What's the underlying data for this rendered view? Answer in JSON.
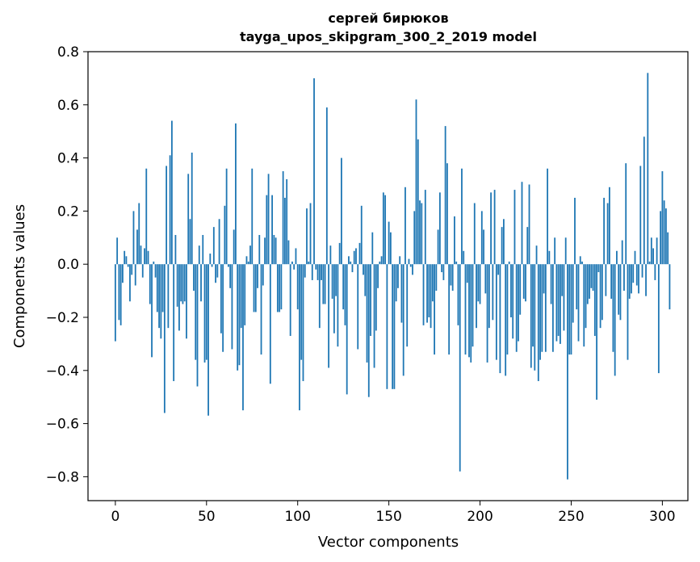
{
  "chart_data": {
    "type": "bar",
    "title": "сергей бирюков",
    "subtitle": "tayga_upos_skipgram_300_2_2019 model",
    "xlabel": "Vector components",
    "ylabel": "Components values",
    "xlim": [
      -15,
      314
    ],
    "ylim": [
      -0.89,
      0.8
    ],
    "xticks": [
      0,
      50,
      100,
      150,
      200,
      250,
      300
    ],
    "xtick_labels": [
      "0",
      "50",
      "100",
      "150",
      "200",
      "250",
      "300"
    ],
    "yticks": [
      -0.8,
      -0.6,
      -0.4,
      -0.2,
      0.0,
      0.2,
      0.4,
      0.6,
      0.8
    ],
    "ytick_labels": [
      "−0.8",
      "−0.6",
      "−0.4",
      "−0.2",
      "0.0",
      "0.2",
      "0.4",
      "0.6",
      "0.8"
    ],
    "bar_color": "#1f77b4",
    "grid": false,
    "legend": "none",
    "values": [
      -0.29,
      0.1,
      -0.21,
      -0.23,
      -0.07,
      0.05,
      0.03,
      -0.01,
      -0.14,
      -0.04,
      0.2,
      -0.08,
      0.13,
      0.23,
      0.07,
      -0.05,
      0.06,
      0.36,
      0.05,
      -0.15,
      -0.35,
      0.01,
      -0.05,
      -0.18,
      -0.24,
      -0.28,
      -0.18,
      -0.56,
      0.37,
      -0.24,
      0.41,
      0.54,
      -0.44,
      0.11,
      -0.16,
      -0.25,
      -0.14,
      -0.15,
      -0.14,
      -0.28,
      0.34,
      0.17,
      0.42,
      -0.1,
      -0.36,
      -0.46,
      0.07,
      -0.14,
      0.11,
      -0.37,
      -0.36,
      -0.57,
      0.04,
      -0.01,
      0.14,
      -0.07,
      -0.05,
      0.17,
      -0.26,
      -0.33,
      0.22,
      0.36,
      -0.01,
      -0.09,
      -0.32,
      0.13,
      0.53,
      -0.4,
      -0.38,
      -0.24,
      -0.55,
      -0.23,
      0.03,
      0.01,
      0.07,
      0.36,
      -0.18,
      -0.18,
      -0.09,
      0.11,
      -0.34,
      -0.08,
      0.1,
      0.26,
      0.34,
      -0.45,
      0.26,
      0.11,
      0.1,
      -0.18,
      -0.18,
      -0.17,
      0.35,
      0.25,
      0.32,
      0.09,
      -0.27,
      0.01,
      -0.02,
      0.06,
      -0.17,
      -0.55,
      -0.36,
      -0.44,
      -0.05,
      0.21,
      0.01,
      0.23,
      -0.06,
      0.7,
      -0.02,
      -0.06,
      -0.24,
      -0.06,
      -0.15,
      -0.15,
      0.59,
      -0.39,
      0.07,
      -0.13,
      -0.26,
      -0.12,
      -0.31,
      0.08,
      0.4,
      -0.17,
      -0.23,
      -0.49,
      0.03,
      0.01,
      -0.03,
      0.05,
      0.06,
      -0.32,
      0.08,
      0.22,
      -0.04,
      -0.12,
      -0.37,
      -0.5,
      -0.27,
      0.12,
      -0.39,
      -0.25,
      -0.09,
      0.01,
      0.03,
      0.27,
      0.26,
      -0.47,
      0.16,
      0.12,
      -0.47,
      -0.47,
      -0.14,
      -0.09,
      0.03,
      -0.22,
      -0.42,
      0.29,
      -0.31,
      0.02,
      -0.01,
      -0.04,
      0.2,
      0.62,
      0.47,
      0.24,
      0.23,
      -0.23,
      0.28,
      -0.22,
      -0.2,
      -0.24,
      -0.14,
      -0.34,
      -0.1,
      0.13,
      0.27,
      -0.03,
      -0.06,
      0.52,
      0.38,
      -0.34,
      -0.08,
      -0.1,
      0.18,
      0.01,
      -0.23,
      -0.78,
      0.36,
      0.05,
      -0.34,
      -0.07,
      -0.35,
      -0.37,
      -0.31,
      0.23,
      -0.24,
      -0.14,
      -0.15,
      0.2,
      0.13,
      -0.11,
      -0.37,
      -0.24,
      0.27,
      -0.21,
      0.28,
      -0.36,
      -0.04,
      -0.41,
      0.14,
      0.17,
      -0.42,
      -0.34,
      0.01,
      -0.2,
      -0.28,
      0.28,
      -0.33,
      -0.29,
      -0.19,
      0.31,
      -0.13,
      -0.14,
      0.14,
      0.3,
      -0.39,
      -0.31,
      -0.4,
      0.07,
      -0.44,
      -0.36,
      -0.33,
      -0.11,
      -0.33,
      0.36,
      0.05,
      -0.15,
      -0.33,
      0.1,
      -0.29,
      -0.27,
      -0.3,
      -0.12,
      -0.25,
      0.1,
      -0.81,
      -0.34,
      -0.34,
      -0.22,
      0.25,
      -0.17,
      -0.29,
      0.03,
      0.01,
      -0.31,
      -0.24,
      -0.15,
      -0.13,
      -0.09,
      -0.1,
      -0.27,
      -0.51,
      -0.03,
      -0.24,
      -0.21,
      0.25,
      -0.12,
      0.23,
      0.29,
      -0.13,
      -0.33,
      -0.42,
      0.05,
      -0.19,
      -0.21,
      0.09,
      -0.1,
      0.38,
      -0.36,
      -0.13,
      -0.11,
      -0.07,
      0.05,
      -0.08,
      -0.11,
      0.37,
      -0.05,
      0.48,
      -0.12,
      0.72,
      0.01,
      0.1,
      0.06,
      -0.06,
      0.1,
      -0.41,
      0.2,
      0.35,
      0.24,
      0.21,
      0.12,
      -0.17
    ]
  }
}
